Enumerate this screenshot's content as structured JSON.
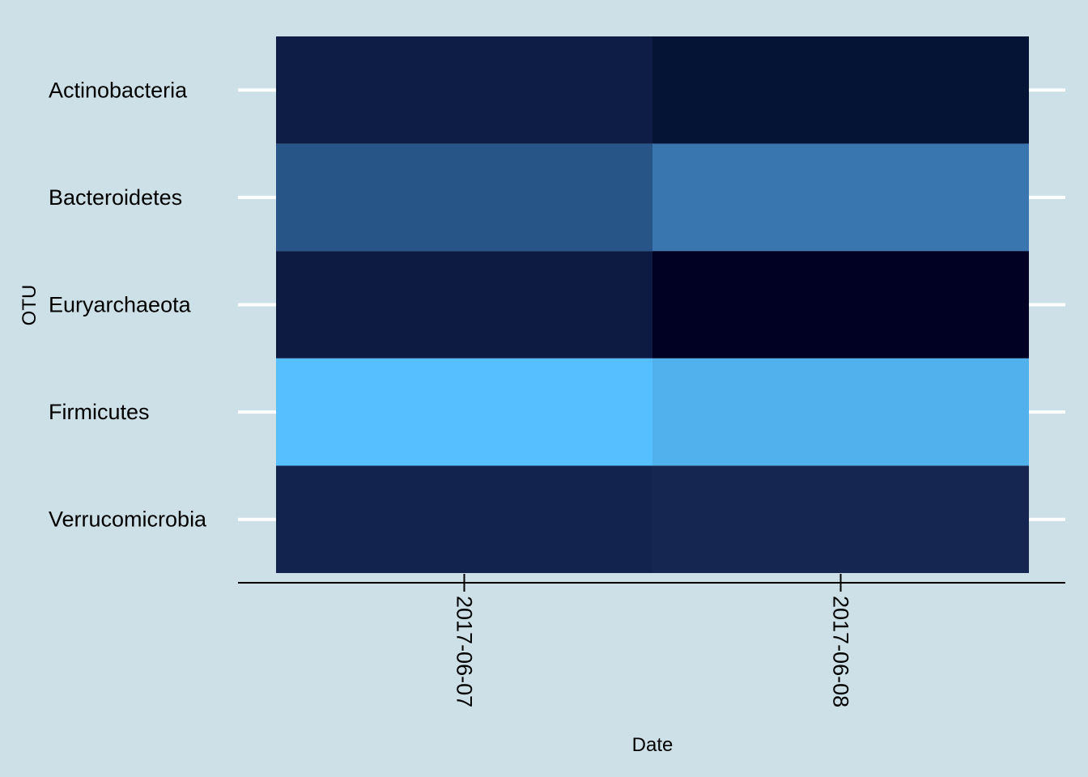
{
  "chart_data": {
    "type": "heatmap",
    "xlabel": "Date",
    "ylabel": "OTU",
    "x": [
      "2017-06-07",
      "2017-06-08"
    ],
    "y": [
      "Actinobacteria",
      "Bacteroidetes",
      "Euryarchaeota",
      "Firmicutes",
      "Verrucomicrobia"
    ],
    "cells": [
      {
        "x": "2017-06-07",
        "y": "Actinobacteria",
        "color": "#0d1d45"
      },
      {
        "x": "2017-06-08",
        "y": "Actinobacteria",
        "color": "#051434"
      },
      {
        "x": "2017-06-07",
        "y": "Bacteroidetes",
        "color": "#285587"
      },
      {
        "x": "2017-06-08",
        "y": "Bacteroidetes",
        "color": "#3976b0"
      },
      {
        "x": "2017-06-07",
        "y": "Euryarchaeota",
        "color": "#0d1b43"
      },
      {
        "x": "2017-06-08",
        "y": "Euryarchaeota",
        "color": "#000123"
      },
      {
        "x": "2017-06-07",
        "y": "Firmicutes",
        "color": "#56bfff"
      },
      {
        "x": "2017-06-08",
        "y": "Firmicutes",
        "color": "#50b1ed"
      },
      {
        "x": "2017-06-07",
        "y": "Verrucomicrobia",
        "color": "#12234d"
      },
      {
        "x": "2017-06-08",
        "y": "Verrucomicrobia",
        "color": "#152751"
      }
    ],
    "legend": "none",
    "grid": false,
    "background_color": "#cddfe7",
    "tick_color": "#ffffff"
  }
}
